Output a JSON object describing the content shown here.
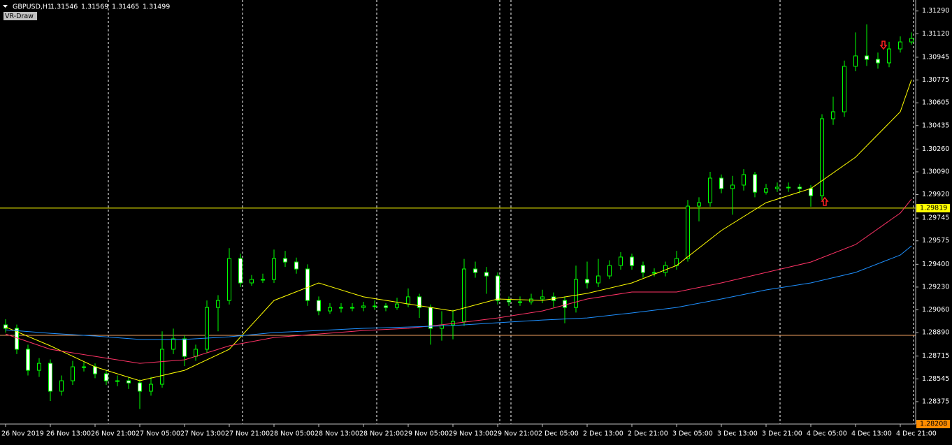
{
  "chart_data": {
    "type": "candlestick",
    "title": "GBPUSD,H1",
    "quote": [
      1.31546,
      1.31569,
      1.31465,
      1.31499
    ],
    "indicator": "VR-Draw",
    "categories": [
      "26 Nov 2019",
      null,
      null,
      null,
      "26 Nov 13:00",
      null,
      null,
      null,
      "26 Nov 21:00",
      null,
      null,
      null,
      "27 Nov 05:00",
      null,
      null,
      null,
      "27 Nov 13:00",
      null,
      null,
      null,
      "27 Nov 21:00",
      null,
      null,
      null,
      "28 Nov 05:00",
      null,
      null,
      null,
      "28 Nov 13:00",
      null,
      null,
      null,
      "28 Nov 21:00",
      null,
      null,
      null,
      "29 Nov 05:00",
      null,
      null,
      null,
      "29 Nov 13:00",
      null,
      null,
      null,
      "29 Nov 21:00",
      null,
      null,
      null,
      "2 Dec 05:00",
      null,
      null,
      null,
      "2 Dec 13:00",
      null,
      null,
      null,
      "2 Dec 21:00",
      null,
      null,
      null,
      "3 Dec 05:00",
      null,
      null,
      null,
      "3 Dec 13:00",
      null,
      null,
      null,
      "3 Dec 21:00",
      null,
      null,
      null,
      "4 Dec 05:00",
      null,
      null,
      null,
      "4 Dec 13:00",
      null,
      null,
      null,
      "4 Dec 21:00",
      null
    ],
    "open": [
      1.28948,
      1.28922,
      1.28766,
      1.28609,
      1.28661,
      1.28453,
      1.28531,
      1.28635,
      1.28635,
      1.28583,
      1.28531,
      1.28531,
      1.28515,
      1.28453,
      1.28505,
      1.28766,
      1.28844,
      1.28713,
      1.28766,
      1.29078,
      1.2913,
      1.29443,
      1.29261,
      1.29287,
      1.29287,
      1.29443,
      1.29417,
      1.29365,
      1.2913,
      1.29052,
      1.29078,
      1.29078,
      1.29078,
      1.29089,
      1.29089,
      1.29078,
      1.29104,
      1.29157,
      1.29078,
      1.28922,
      1.28948,
      1.28974,
      1.29365,
      1.29339,
      1.29313,
      1.2913,
      1.2912,
      1.2912,
      1.29141,
      1.29157,
      1.2913,
      1.29078,
      1.29287,
      1.29261,
      1.29313,
      1.29391,
      1.29454,
      1.29391,
      1.29339,
      1.29339,
      1.29391,
      1.29443,
      1.29834,
      1.2986,
      1.30043,
      1.29965,
      1.29991,
      1.30069,
      1.29938,
      1.29965,
      1.29975,
      1.29975,
      1.29965,
      1.29912,
      1.30486,
      1.30538,
      1.30877,
      1.30955,
      1.30929,
      1.30903,
      1.31007,
      1.31059
    ],
    "high": [
      1.2899,
      1.2895,
      1.288,
      1.287,
      1.2869,
      1.2857,
      1.2868,
      1.2867,
      1.2866,
      1.2861,
      1.2857,
      1.2856,
      1.2854,
      1.2856,
      1.289,
      1.2892,
      1.2887,
      1.288,
      1.2913,
      1.2917,
      1.2952,
      1.2948,
      1.2932,
      1.2933,
      1.2951,
      1.295,
      1.2945,
      1.294,
      1.2916,
      1.2911,
      1.2911,
      1.2911,
      1.2912,
      1.2913,
      1.2911,
      1.2915,
      1.2922,
      1.2918,
      1.291,
      1.2905,
      1.2906,
      1.2944,
      1.2942,
      1.2938,
      1.2934,
      1.2916,
      1.2916,
      1.2918,
      1.2921,
      1.2919,
      1.2916,
      1.2939,
      1.2942,
      1.2944,
      1.2943,
      1.2949,
      1.2948,
      1.2942,
      1.2937,
      1.2942,
      1.295,
      1.2988,
      1.299,
      1.3009,
      1.3007,
      1.3006,
      1.3011,
      1.3009,
      1.3,
      1.3001,
      1.3001,
      1.3,
      1.2999,
      1.3052,
      1.3065,
      1.3092,
      1.3113,
      1.3119,
      1.3098,
      1.3106,
      1.311,
      1.3113
    ],
    "low": [
      1.2889,
      1.2873,
      1.2857,
      1.2856,
      1.2838,
      1.2842,
      1.285,
      1.286,
      1.2855,
      1.285,
      1.2849,
      1.2847,
      1.2832,
      1.2842,
      1.2848,
      1.2873,
      1.2864,
      1.2868,
      1.2874,
      1.289,
      1.291,
      1.2923,
      1.2924,
      1.2926,
      1.2926,
      1.2938,
      1.2933,
      1.2909,
      1.2902,
      1.2903,
      1.2904,
      1.2905,
      1.2905,
      1.2906,
      1.2905,
      1.2906,
      1.2908,
      1.29,
      1.288,
      1.2883,
      1.2884,
      1.2894,
      1.293,
      1.2918,
      1.291,
      1.2909,
      1.2909,
      1.291,
      1.2911,
      1.2908,
      1.2896,
      1.2904,
      1.2922,
      1.2923,
      1.2929,
      1.2936,
      1.2936,
      1.293,
      1.2931,
      1.2931,
      1.2936,
      1.2942,
      1.2972,
      1.2983,
      1.2993,
      1.2977,
      1.2995,
      1.299,
      1.2992,
      1.2994,
      1.2994,
      1.2993,
      1.2983,
      1.2988,
      1.3044,
      1.305,
      1.3084,
      1.3088,
      1.3086,
      1.3087,
      1.3098,
      1.3104
    ],
    "close": [
      1.28922,
      1.28766,
      1.28609,
      1.28661,
      1.28453,
      1.28531,
      1.28635,
      1.28635,
      1.28583,
      1.28531,
      1.28531,
      1.28515,
      1.28453,
      1.28505,
      1.28766,
      1.28844,
      1.28713,
      1.28766,
      1.29078,
      1.2913,
      1.29443,
      1.29261,
      1.29287,
      1.29287,
      1.29443,
      1.29417,
      1.29365,
      1.2913,
      1.29052,
      1.29078,
      1.29078,
      1.29078,
      1.29089,
      1.29089,
      1.29078,
      1.29104,
      1.29157,
      1.29078,
      1.28922,
      1.28948,
      1.28974,
      1.29365,
      1.29339,
      1.29313,
      1.2913,
      1.2912,
      1.2912,
      1.29141,
      1.29157,
      1.2913,
      1.29078,
      1.29287,
      1.29261,
      1.29313,
      1.29391,
      1.29454,
      1.29391,
      1.29339,
      1.29339,
      1.29391,
      1.29443,
      1.29834,
      1.2986,
      1.30043,
      1.29965,
      1.29991,
      1.30069,
      1.29938,
      1.29965,
      1.29975,
      1.29975,
      1.29965,
      1.29912,
      1.30486,
      1.30538,
      1.30877,
      1.30955,
      1.30929,
      1.30903,
      1.31007,
      1.31059,
      1.31085
    ],
    "up_color": "#000000",
    "down_color": "#ffffff",
    "wick_color": "#00ff00",
    "series": [
      {
        "color": "#ffff00",
        "x": [
          0,
          4,
          8,
          12,
          16,
          20,
          24,
          28,
          32,
          36,
          40,
          44,
          48,
          52,
          56,
          60,
          64,
          68,
          72,
          76,
          80,
          81
        ],
        "values": [
          1.28932,
          1.28792,
          1.28635,
          1.28531,
          1.28609,
          1.28766,
          1.2913,
          1.29261,
          1.29157,
          1.29104,
          1.29052,
          1.29141,
          1.2913,
          1.29183,
          1.29261,
          1.29391,
          1.29652,
          1.2986,
          1.29965,
          1.30199,
          1.30538,
          1.30777
        ]
      },
      {
        "color": "#ff3366",
        "x": [
          0,
          4,
          8,
          12,
          16,
          20,
          24,
          28,
          32,
          36,
          40,
          44,
          48,
          52,
          56,
          60,
          64,
          68,
          72,
          76,
          80,
          81
        ],
        "values": [
          1.2888,
          1.28766,
          1.28713,
          1.28661,
          1.28687,
          1.28792,
          1.28854,
          1.2888,
          1.28906,
          1.28922,
          1.28958,
          1.29,
          1.29052,
          1.29141,
          1.29193,
          1.29193,
          1.29261,
          1.29339,
          1.29417,
          1.29547,
          1.29782,
          1.29886
        ]
      },
      {
        "color": "#1e90ff",
        "x": [
          0,
          4,
          8,
          12,
          16,
          20,
          24,
          28,
          32,
          36,
          40,
          44,
          48,
          52,
          56,
          60,
          64,
          68,
          72,
          76,
          80,
          81
        ],
        "values": [
          1.28911,
          1.28885,
          1.28865,
          1.28839,
          1.28839,
          1.28859,
          1.28891,
          1.28906,
          1.28922,
          1.28932,
          1.28943,
          1.28964,
          1.28984,
          1.29,
          1.29037,
          1.29078,
          1.29141,
          1.29209,
          1.29261,
          1.29339,
          1.29469,
          1.29537
        ]
      }
    ],
    "hlines": [
      {
        "value": 1.29819,
        "color": "#ffff00"
      },
      {
        "value": 1.2887,
        "color": "#f0a060"
      }
    ],
    "ylim": [
      1.28208,
      1.31372
    ],
    "yticks": [
      {
        "value": 1.3129,
        "label": "1.31290"
      },
      {
        "value": 1.3112,
        "label": "1.31120"
      },
      1.30945,
      1.30775,
      1.30605,
      1.30435,
      {
        "value": 1.3026,
        "label": "1.30260"
      },
      {
        "value": 1.3009,
        "label": "1.30090"
      },
      {
        "value": 1.2992,
        "label": "1.29920"
      },
      1.29745,
      1.29575,
      {
        "value": 1.294,
        "label": "1.29400"
      },
      {
        "value": 1.2923,
        "label": "1.29230"
      },
      {
        "value": 1.2906,
        "label": "1.29060"
      },
      {
        "value": 1.2889,
        "label": "1.28890"
      },
      1.28715,
      1.28545,
      1.28375
    ]
  }
}
